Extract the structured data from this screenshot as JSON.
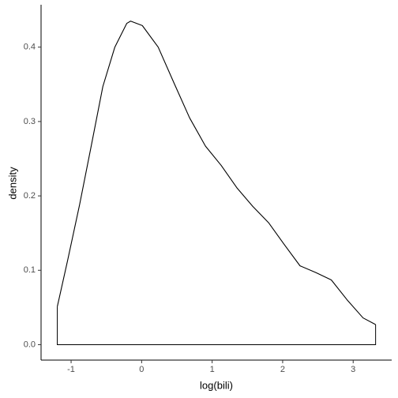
{
  "chart_data": {
    "type": "density",
    "x_label": "log(bili)",
    "y_label": "density",
    "x": [
      -1.196,
      -1.05,
      -0.88,
      -0.715,
      -0.55,
      -0.38,
      -0.21,
      -0.156,
      0.01,
      0.235,
      0.458,
      0.68,
      0.905,
      1.128,
      1.35,
      1.575,
      1.8,
      2.02,
      2.246,
      2.47,
      2.69,
      2.916,
      3.14,
      3.318
    ],
    "values": [
      0.051,
      0.113,
      0.188,
      0.267,
      0.347,
      0.4,
      0.432,
      0.435,
      0.429,
      0.4,
      0.352,
      0.305,
      0.267,
      0.241,
      0.211,
      0.186,
      0.164,
      0.135,
      0.106,
      0.097,
      0.087,
      0.06,
      0.036,
      0.027
    ],
    "color": "#000000",
    "xlim": [
      -1.426,
      3.546
    ],
    "ylim": [
      -0.0218,
      0.457
    ],
    "xticks": [
      -1,
      0,
      1,
      2,
      3
    ],
    "yticks": [
      {
        "value": 0,
        "label": "0.0"
      },
      0.1,
      0.2,
      0.3,
      0.4
    ]
  }
}
